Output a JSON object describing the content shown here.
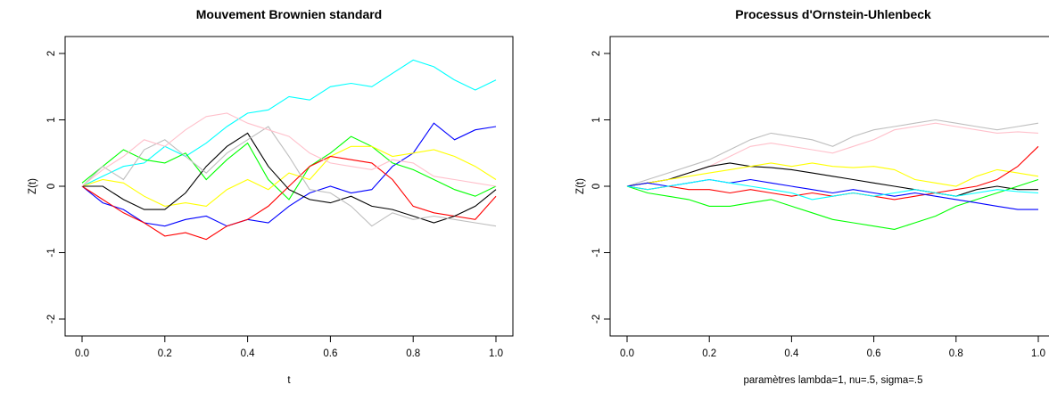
{
  "chart_data": [
    {
      "type": "line",
      "title": "Mouvement Brownien standard",
      "xlabel": "t",
      "ylabel": "Z(t)",
      "xlim": [
        0.0,
        1.0
      ],
      "ylim": [
        -2,
        2
      ],
      "xticks": [
        "0.0",
        "0.2",
        "0.4",
        "0.6",
        "0.8",
        "1.0"
      ],
      "yticks": [
        "-2",
        "-1",
        "0",
        "1",
        "2"
      ],
      "grid": false,
      "x": [
        0.0,
        0.05,
        0.1,
        0.15,
        0.2,
        0.25,
        0.3,
        0.35,
        0.4,
        0.45,
        0.5,
        0.55,
        0.6,
        0.65,
        0.7,
        0.75,
        0.8,
        0.85,
        0.9,
        0.95,
        1.0
      ],
      "series": [
        {
          "color": "#00ffff",
          "values": [
            0.0,
            0.15,
            0.3,
            0.35,
            0.6,
            0.45,
            0.65,
            0.9,
            1.1,
            1.15,
            1.35,
            1.3,
            1.5,
            1.55,
            1.5,
            1.7,
            1.9,
            1.8,
            1.6,
            1.45,
            1.6
          ]
        },
        {
          "color": "#0000ff",
          "values": [
            0.0,
            -0.25,
            -0.35,
            -0.55,
            -0.6,
            -0.5,
            -0.45,
            -0.6,
            -0.5,
            -0.55,
            -0.3,
            -0.1,
            0.0,
            -0.1,
            -0.05,
            0.3,
            0.5,
            0.95,
            0.7,
            0.85,
            0.9
          ]
        },
        {
          "color": "#00ff00",
          "values": [
            0.05,
            0.3,
            0.55,
            0.4,
            0.35,
            0.5,
            0.1,
            0.4,
            0.65,
            0.1,
            -0.2,
            0.3,
            0.5,
            0.75,
            0.6,
            0.35,
            0.25,
            0.1,
            -0.05,
            -0.15,
            0.0
          ]
        },
        {
          "color": "#ffff00",
          "values": [
            0.0,
            0.1,
            0.05,
            -0.15,
            -0.3,
            -0.25,
            -0.3,
            -0.05,
            0.1,
            -0.05,
            0.2,
            0.1,
            0.45,
            0.6,
            0.6,
            0.45,
            0.5,
            0.55,
            0.45,
            0.3,
            0.1
          ]
        },
        {
          "color": "#ff0000",
          "values": [
            0.0,
            -0.2,
            -0.4,
            -0.55,
            -0.75,
            -0.7,
            -0.8,
            -0.6,
            -0.5,
            -0.3,
            0.0,
            0.3,
            0.45,
            0.4,
            0.35,
            0.1,
            -0.3,
            -0.4,
            -0.45,
            -0.5,
            -0.15
          ]
        },
        {
          "color": "#000000",
          "values": [
            0.0,
            0.0,
            -0.2,
            -0.35,
            -0.35,
            -0.1,
            0.3,
            0.6,
            0.8,
            0.3,
            -0.05,
            -0.2,
            -0.25,
            -0.15,
            -0.3,
            -0.35,
            -0.45,
            -0.55,
            -0.45,
            -0.3,
            -0.05
          ]
        },
        {
          "color": "#bebebe",
          "values": [
            0.0,
            0.3,
            0.1,
            0.55,
            0.7,
            0.45,
            0.2,
            0.5,
            0.7,
            0.9,
            0.45,
            -0.05,
            -0.1,
            -0.3,
            -0.6,
            -0.4,
            -0.5,
            -0.45,
            -0.5,
            -0.55,
            -0.6
          ]
        },
        {
          "color": "#ffc0cb",
          "values": [
            0.0,
            0.25,
            0.45,
            0.7,
            0.6,
            0.85,
            1.05,
            1.1,
            0.95,
            0.85,
            0.75,
            0.5,
            0.35,
            0.3,
            0.25,
            0.4,
            0.35,
            0.15,
            0.1,
            0.05,
            0.0
          ]
        }
      ]
    },
    {
      "type": "line",
      "title": "Processus d'Ornstein-Uhlenbeck",
      "xlabel": "paramètres lambda=1, nu=.5, sigma=.5",
      "ylabel": "Z(t)",
      "xlim": [
        0.0,
        1.0
      ],
      "ylim": [
        -2,
        2
      ],
      "xticks": [
        "0.0",
        "0.2",
        "0.4",
        "0.6",
        "0.8",
        "1.0"
      ],
      "yticks": [
        "-2",
        "-1",
        "0",
        "1",
        "2"
      ],
      "grid": false,
      "x": [
        0.0,
        0.05,
        0.1,
        0.15,
        0.2,
        0.25,
        0.3,
        0.35,
        0.4,
        0.45,
        0.5,
        0.55,
        0.6,
        0.65,
        0.7,
        0.75,
        0.8,
        0.85,
        0.9,
        0.95,
        1.0
      ],
      "series": [
        {
          "color": "#bebebe",
          "values": [
            0.0,
            0.1,
            0.2,
            0.3,
            0.4,
            0.55,
            0.7,
            0.8,
            0.75,
            0.7,
            0.6,
            0.75,
            0.85,
            0.9,
            0.95,
            1.0,
            0.95,
            0.9,
            0.85,
            0.9,
            0.95
          ]
        },
        {
          "color": "#ffc0cb",
          "values": [
            0.0,
            0.05,
            0.1,
            0.2,
            0.3,
            0.45,
            0.6,
            0.65,
            0.6,
            0.55,
            0.5,
            0.6,
            0.7,
            0.85,
            0.9,
            0.95,
            0.9,
            0.85,
            0.8,
            0.82,
            0.8
          ]
        },
        {
          "color": "#000000",
          "values": [
            0.0,
            0.05,
            0.1,
            0.2,
            0.3,
            0.35,
            0.3,
            0.28,
            0.25,
            0.2,
            0.15,
            0.1,
            0.05,
            0.0,
            -0.05,
            -0.1,
            -0.15,
            -0.05,
            0.0,
            -0.05,
            -0.05
          ]
        },
        {
          "color": "#ffff00",
          "values": [
            0.0,
            0.05,
            0.1,
            0.15,
            0.2,
            0.25,
            0.3,
            0.35,
            0.3,
            0.35,
            0.3,
            0.28,
            0.3,
            0.25,
            0.1,
            0.05,
            0.0,
            0.15,
            0.25,
            0.2,
            0.15
          ]
        },
        {
          "color": "#ff0000",
          "values": [
            0.0,
            -0.05,
            0.0,
            -0.05,
            -0.05,
            -0.1,
            -0.05,
            -0.1,
            -0.15,
            -0.1,
            -0.15,
            -0.1,
            -0.15,
            -0.2,
            -0.15,
            -0.1,
            -0.05,
            0.0,
            0.1,
            0.3,
            0.6
          ]
        },
        {
          "color": "#00ff00",
          "values": [
            0.0,
            -0.1,
            -0.15,
            -0.2,
            -0.3,
            -0.3,
            -0.25,
            -0.2,
            -0.3,
            -0.4,
            -0.5,
            -0.55,
            -0.6,
            -0.65,
            -0.55,
            -0.45,
            -0.3,
            -0.2,
            -0.1,
            0.0,
            0.1
          ]
        },
        {
          "color": "#0000ff",
          "values": [
            0.0,
            0.05,
            0.0,
            0.05,
            0.1,
            0.05,
            0.1,
            0.05,
            0.0,
            -0.05,
            -0.1,
            -0.05,
            -0.1,
            -0.15,
            -0.1,
            -0.15,
            -0.2,
            -0.25,
            -0.3,
            -0.35,
            -0.35
          ]
        },
        {
          "color": "#00ffff",
          "values": [
            0.0,
            -0.05,
            0.0,
            0.05,
            0.1,
            0.05,
            0.0,
            -0.05,
            -0.1,
            -0.2,
            -0.15,
            -0.1,
            -0.15,
            -0.1,
            -0.05,
            -0.1,
            -0.15,
            -0.1,
            -0.05,
            -0.08,
            -0.1
          ]
        }
      ]
    }
  ]
}
